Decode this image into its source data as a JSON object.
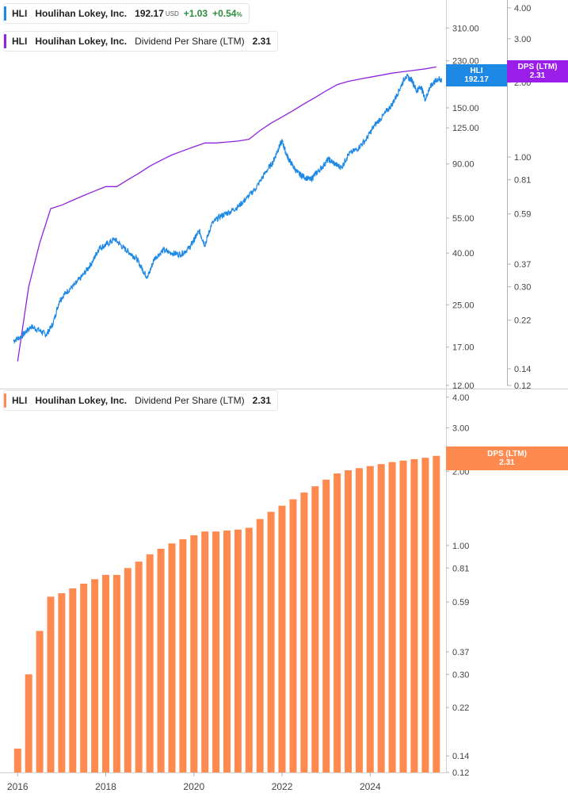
{
  "legends": {
    "price": {
      "symbol": "HLI",
      "name": "Houlihan Lokey, Inc.",
      "price": "192.17",
      "currency": "USD",
      "change": "+1.03",
      "change_pct": "+0.54",
      "pct_sign": "%",
      "color": "#1e88e5"
    },
    "dps_top": {
      "symbol": "HLI",
      "name": "Houlihan Lokey, Inc.",
      "metric": "Dividend Per Share (LTM)",
      "value": "2.31",
      "color": "#8e24e0"
    },
    "dps_bottom": {
      "symbol": "HLI",
      "name": "Houlihan Lokey, Inc.",
      "metric": "Dividend Per Share (LTM)",
      "value": "2.31",
      "color": "#ff8a50"
    }
  },
  "tags": {
    "price": {
      "line1": "HLI",
      "line2": "192.17",
      "color": "#1e88e5"
    },
    "dps_top": {
      "line1": "DPS (LTM)",
      "line2": "2.31",
      "color": "#9a1ee8"
    },
    "dps_bottom": {
      "line1": "DPS (LTM)",
      "line2": "2.31",
      "color": "#ff8a50"
    }
  },
  "chart_data": [
    {
      "type": "line",
      "scale": "log",
      "series": [
        {
          "name": "HLI",
          "color": "#1e88e5",
          "x": [
            2015.9,
            2016.1,
            2016.3,
            2016.5,
            2016.65,
            2016.8,
            2016.95,
            2017.1,
            2017.3,
            2017.5,
            2017.7,
            2017.85,
            2018.0,
            2018.2,
            2018.4,
            2018.55,
            2018.7,
            2018.85,
            2018.95,
            2019.1,
            2019.3,
            2019.5,
            2019.7,
            2019.9,
            2020.0,
            2020.12,
            2020.25,
            2020.4,
            2020.6,
            2020.8,
            2021.0,
            2021.2,
            2021.4,
            2021.6,
            2021.8,
            2021.9,
            2022.0,
            2022.1,
            2022.2,
            2022.35,
            2022.5,
            2022.65,
            2022.75,
            2022.9,
            2023.05,
            2023.2,
            2023.35,
            2023.5,
            2023.7,
            2023.9,
            2024.1,
            2024.3,
            2024.5,
            2024.65,
            2024.8,
            2024.95,
            2025.05,
            2025.15,
            2025.25,
            2025.35,
            2025.45,
            2025.55,
            2025.62
          ],
          "y": [
            18.0,
            18.8,
            20.5,
            19.8,
            19.0,
            21.0,
            26.0,
            28.0,
            30.0,
            33.0,
            37.0,
            42.0,
            43.0,
            45.5,
            42.0,
            40.0,
            38.0,
            34.0,
            32.0,
            38.0,
            41.0,
            40.0,
            39.5,
            42.0,
            45.0,
            49.0,
            43.0,
            52.0,
            56.0,
            58.0,
            61.0,
            66.0,
            72.0,
            82.0,
            92.0,
            102.0,
            111.0,
            98.0,
            91.0,
            83.0,
            80.0,
            78.0,
            82.0,
            87.0,
            94.0,
            90.0,
            87.0,
            98.0,
            103.0,
            112.0,
            128.0,
            140.0,
            155.0,
            175.0,
            200.0,
            193.0,
            175.0,
            182.0,
            162.0,
            180.0,
            190.0,
            195.0,
            192.17
          ]
        },
        {
          "name": "Dividend Per Share (LTM)",
          "color": "#8e24e0",
          "axis": "right",
          "x": [
            2016.0,
            2016.25,
            2016.5,
            2016.75,
            2017.0,
            2017.25,
            2017.5,
            2017.75,
            2018.0,
            2018.25,
            2018.5,
            2018.75,
            2019.0,
            2019.25,
            2019.5,
            2019.75,
            2020.0,
            2020.25,
            2020.5,
            2020.75,
            2021.0,
            2021.25,
            2021.5,
            2021.75,
            2022.0,
            2022.25,
            2022.5,
            2022.75,
            2023.0,
            2023.25,
            2023.5,
            2023.75,
            2024.0,
            2024.25,
            2024.5,
            2024.75,
            2025.0,
            2025.25,
            2025.5
          ],
          "y": [
            0.15,
            0.3,
            0.45,
            0.62,
            0.64,
            0.67,
            0.7,
            0.73,
            0.76,
            0.76,
            0.81,
            0.86,
            0.92,
            0.97,
            1.02,
            1.06,
            1.1,
            1.14,
            1.14,
            1.15,
            1.16,
            1.18,
            1.28,
            1.37,
            1.45,
            1.54,
            1.64,
            1.74,
            1.85,
            1.96,
            2.02,
            2.06,
            2.1,
            2.14,
            2.18,
            2.21,
            2.24,
            2.27,
            2.31
          ]
        }
      ],
      "left_axis_ticks": [
        "310.00",
        "230.00",
        "150.00",
        "125.00",
        "90.00",
        "55.00",
        "40.00",
        "25.00",
        "17.00",
        "12.00"
      ],
      "right_axis_ticks": [
        "4.00",
        "3.00",
        "2.00",
        "1.00",
        "0.81",
        "0.59",
        "0.37",
        "0.30",
        "0.22",
        "0.14",
        "0.12"
      ],
      "left_ylim": [
        12,
        400
      ],
      "right_ylim": [
        0.12,
        4.3
      ]
    },
    {
      "type": "bar",
      "scale": "log",
      "series": [
        {
          "name": "Dividend Per Share (LTM)",
          "color": "#ff8a50",
          "x": [
            2016.0,
            2016.25,
            2016.5,
            2016.75,
            2017.0,
            2017.25,
            2017.5,
            2017.75,
            2018.0,
            2018.25,
            2018.5,
            2018.75,
            2019.0,
            2019.25,
            2019.5,
            2019.75,
            2020.0,
            2020.25,
            2020.5,
            2020.75,
            2021.0,
            2021.25,
            2021.5,
            2021.75,
            2022.0,
            2022.25,
            2022.5,
            2022.75,
            2023.0,
            2023.25,
            2023.5,
            2023.75,
            2024.0,
            2024.25,
            2024.5,
            2024.75,
            2025.0,
            2025.25,
            2025.5
          ],
          "y": [
            0.15,
            0.3,
            0.45,
            0.62,
            0.64,
            0.67,
            0.7,
            0.73,
            0.76,
            0.76,
            0.81,
            0.86,
            0.92,
            0.97,
            1.02,
            1.06,
            1.1,
            1.14,
            1.14,
            1.15,
            1.16,
            1.18,
            1.28,
            1.37,
            1.45,
            1.54,
            1.64,
            1.74,
            1.85,
            1.96,
            2.02,
            2.06,
            2.1,
            2.14,
            2.18,
            2.21,
            2.24,
            2.27,
            2.31
          ]
        }
      ],
      "right_axis_ticks": [
        "4.00",
        "3.00",
        "2.00",
        "1.00",
        "0.81",
        "0.59",
        "0.37",
        "0.30",
        "0.22",
        "0.14",
        "0.12"
      ],
      "ylim": [
        0.12,
        4.3
      ],
      "x_ticks": [
        "2016",
        "2018",
        "2020",
        "2022",
        "2024"
      ],
      "x_tick_values": [
        2016,
        2018,
        2020,
        2022,
        2024
      ],
      "xlim": [
        2015.6,
        2025.72
      ]
    }
  ]
}
